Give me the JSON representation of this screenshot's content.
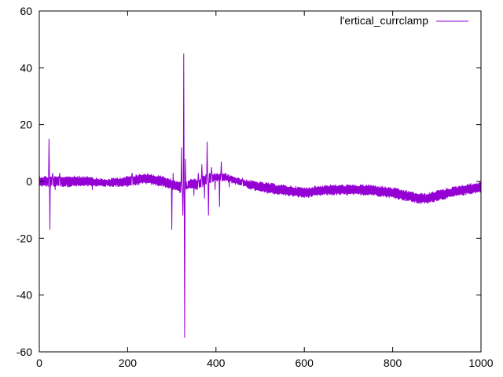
{
  "chart_data": {
    "type": "line",
    "title": "",
    "xlabel": "",
    "ylabel": "",
    "xlim": [
      0,
      1000
    ],
    "ylim": [
      -60,
      60
    ],
    "xticks": [
      0,
      200,
      400,
      600,
      800,
      1000
    ],
    "yticks": [
      -60,
      -40,
      -20,
      0,
      20,
      40,
      60
    ],
    "grid": false,
    "legend_position": "top-right",
    "series": [
      {
        "name": "l'ertical_currclamp",
        "color": "#9400d3",
        "band": {
          "x": [
            0,
            50,
            100,
            150,
            200,
            240,
            280,
            300,
            320,
            340,
            360,
            380,
            400,
            420,
            440,
            460,
            500,
            550,
            600,
            650,
            700,
            750,
            800,
            830,
            860,
            880,
            900,
            930,
            960,
            1000
          ],
          "low": [
            -2,
            -2,
            -2,
            -2,
            -2,
            -1,
            -2,
            -3,
            -4,
            -3,
            -3,
            -1,
            0,
            0,
            -1,
            -2,
            -4,
            -5,
            -6,
            -5,
            -5,
            -5,
            -6,
            -7,
            -8,
            -8,
            -7,
            -6,
            -5,
            -4
          ],
          "high": [
            2,
            2,
            2,
            1,
            2,
            3,
            2,
            1,
            0,
            1,
            1,
            3,
            3,
            3,
            2,
            1,
            0,
            -1,
            -2,
            -1,
            -1,
            -1,
            -2,
            -3,
            -4,
            -4,
            -3,
            -2,
            -1,
            0
          ]
        },
        "spikes": [
          [
            22,
            15
          ],
          [
            24,
            -17
          ],
          [
            30,
            3
          ],
          [
            36,
            -3
          ],
          [
            46,
            3
          ],
          [
            120,
            -3
          ],
          [
            210,
            3
          ],
          [
            300,
            -17
          ],
          [
            303,
            3
          ],
          [
            318,
            -4
          ],
          [
            322,
            12
          ],
          [
            325,
            -12
          ],
          [
            327,
            45
          ],
          [
            329,
            -55
          ],
          [
            331,
            8
          ],
          [
            335,
            -2
          ],
          [
            350,
            -5
          ],
          [
            360,
            3
          ],
          [
            368,
            6
          ],
          [
            374,
            -6
          ],
          [
            380,
            14
          ],
          [
            383,
            -12
          ],
          [
            390,
            5
          ],
          [
            398,
            -3
          ],
          [
            408,
            -9
          ],
          [
            412,
            7
          ],
          [
            430,
            -2
          ],
          [
            460,
            1
          ]
        ]
      }
    ]
  }
}
